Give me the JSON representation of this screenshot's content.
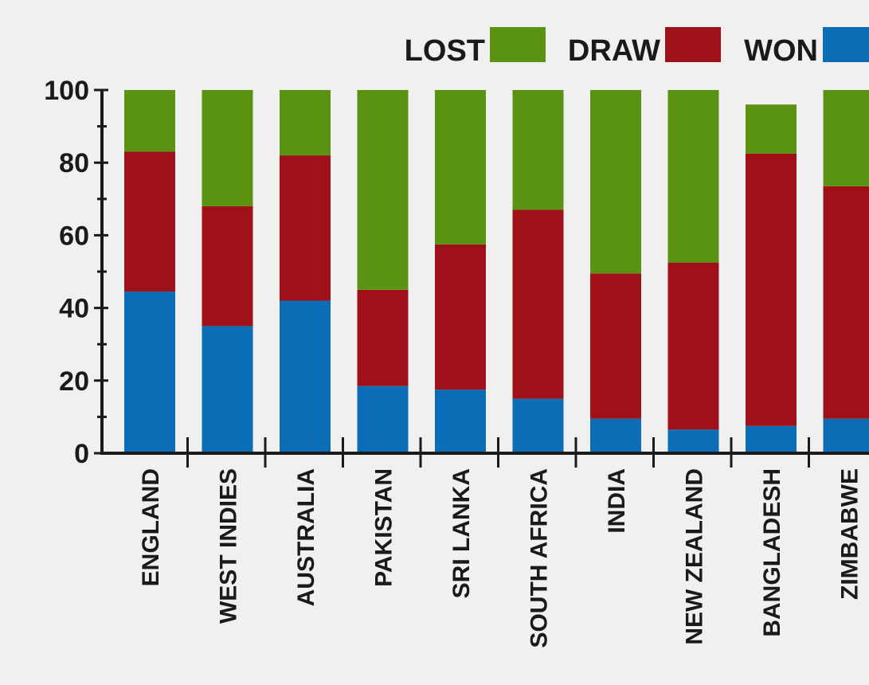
{
  "chart_data": {
    "type": "bar",
    "stacked": true,
    "orientation": "vertical",
    "categories": [
      "ENGLAND",
      "WEST INDIES",
      "AUSTRALIA",
      "PAKISTAN",
      "SRI LANKA",
      "SOUTH AFRICA",
      "INDIA",
      "NEW ZEALAND",
      "BANGLADESH",
      "ZIMBABWE"
    ],
    "series": [
      {
        "name": "WON",
        "color": "#0a6db5",
        "values": [
          44.5,
          35,
          42,
          18.5,
          17.5,
          15,
          9.5,
          6.5,
          7.5,
          9.5
        ]
      },
      {
        "name": "DRAW",
        "color": "#a01018",
        "values": [
          38.5,
          33,
          40,
          26.5,
          40,
          52,
          40,
          46,
          75,
          64
        ]
      },
      {
        "name": "LOST",
        "color": "#5a9212",
        "values": [
          17,
          32,
          18,
          55,
          42.5,
          33,
          50.5,
          47.5,
          13.5,
          26.5
        ]
      }
    ],
    "legend": {
      "entries": [
        "LOST",
        "DRAW",
        "WON"
      ],
      "colors": [
        "#5a9212",
        "#a01018",
        "#0a6db5"
      ],
      "position": "top-right"
    },
    "y_ticks": [
      "0",
      "20",
      "40",
      "60",
      "80",
      "100"
    ],
    "ylim": [
      0,
      100
    ],
    "grid": false
  }
}
